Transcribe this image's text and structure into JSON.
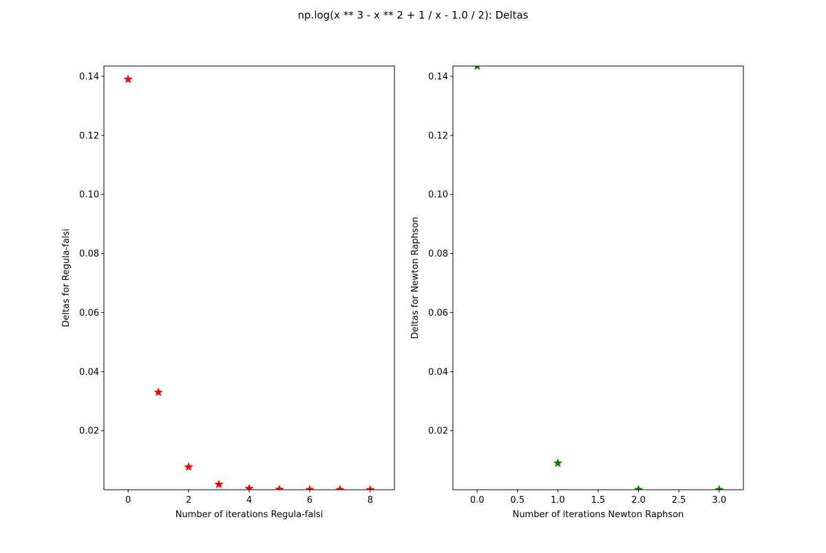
{
  "figure": {
    "title": "np.log(x ** 3 - x ** 2 + 1 / x - 1.0 / 2): Deltas"
  },
  "chart_data": [
    {
      "type": "scatter",
      "marker": "star",
      "color": "#ff0000",
      "xlabel": "Number of iterations Regula-falsi",
      "ylabel": "Deltas for Regula-falsi",
      "xlim": [
        -0.8,
        8.8
      ],
      "ylim": [
        0.0,
        0.1435
      ],
      "xticks": [
        0,
        2,
        4,
        6,
        8
      ],
      "xtick_labels": [
        "0",
        "2",
        "4",
        "6",
        "8"
      ],
      "yticks": [
        0.02,
        0.04,
        0.06,
        0.08,
        0.1,
        0.12,
        0.14
      ],
      "ytick_labels": [
        "0.02",
        "0.04",
        "0.06",
        "0.08",
        "0.10",
        "0.12",
        "0.14"
      ],
      "grid": false,
      "x": [
        0,
        1,
        2,
        3,
        4,
        5,
        6,
        7,
        8
      ],
      "y": [
        0.139,
        0.033,
        0.0077,
        0.0018,
        0.0004,
        0.0001,
        2e-05,
        5e-06,
        1e-06
      ]
    },
    {
      "type": "scatter",
      "marker": "star",
      "color": "#008000",
      "xlabel": "Number of iterations Newton Raphson",
      "ylabel": "Deltas for Newton Raphson",
      "xlim": [
        -0.3,
        3.3
      ],
      "ylim": [
        0.0,
        0.1435
      ],
      "xticks": [
        0.0,
        0.5,
        1.0,
        1.5,
        2.0,
        2.5,
        3.0
      ],
      "xtick_labels": [
        "0.0",
        "0.5",
        "1.0",
        "1.5",
        "2.0",
        "2.5",
        "3.0"
      ],
      "yticks": [
        0.02,
        0.04,
        0.06,
        0.08,
        0.1,
        0.12,
        0.14
      ],
      "ytick_labels": [
        "0.02",
        "0.04",
        "0.06",
        "0.08",
        "0.10",
        "0.12",
        "0.14"
      ],
      "grid": false,
      "x": [
        0,
        1,
        2,
        3
      ],
      "y": [
        0.1435,
        0.009,
        5e-05,
        1e-07
      ]
    }
  ]
}
